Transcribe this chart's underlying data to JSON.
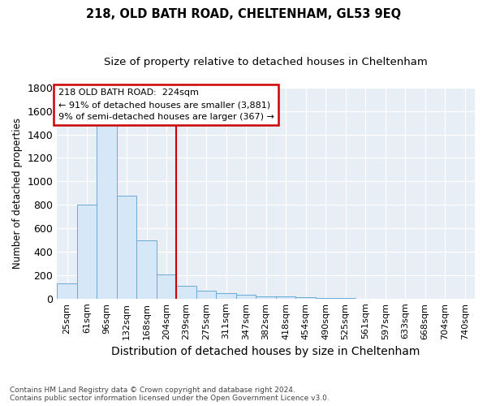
{
  "title": "218, OLD BATH ROAD, CHELTENHAM, GL53 9EQ",
  "subtitle": "Size of property relative to detached houses in Cheltenham",
  "xlabel": "Distribution of detached houses by size in Cheltenham",
  "ylabel": "Number of detached properties",
  "categories": [
    "25sqm",
    "61sqm",
    "96sqm",
    "132sqm",
    "168sqm",
    "204sqm",
    "239sqm",
    "275sqm",
    "311sqm",
    "347sqm",
    "382sqm",
    "418sqm",
    "454sqm",
    "490sqm",
    "525sqm",
    "561sqm",
    "597sqm",
    "633sqm",
    "668sqm",
    "704sqm",
    "740sqm"
  ],
  "values": [
    130,
    800,
    1480,
    880,
    500,
    205,
    110,
    65,
    45,
    35,
    20,
    20,
    10,
    5,
    3,
    2,
    2,
    1,
    1,
    0,
    0
  ],
  "bar_color": "#d6e8f7",
  "bar_edge_color": "#6aaad4",
  "vline_color": "#cc0000",
  "vline_pos": 5.5,
  "annotation_text": "218 OLD BATH ROAD:  224sqm\n← 91% of detached houses are smaller (3,881)\n9% of semi-detached houses are larger (367) →",
  "annotation_box_color": "#ffffff",
  "annotation_box_edge": "#cc0000",
  "footnote": "Contains HM Land Registry data © Crown copyright and database right 2024.\nContains public sector information licensed under the Open Government Licence v3.0.",
  "ylim": [
    0,
    1800
  ],
  "yticks": [
    0,
    200,
    400,
    600,
    800,
    1000,
    1200,
    1400,
    1600,
    1800
  ],
  "plot_background": "#e8eef5",
  "grid_color": "#ffffff",
  "title_fontsize": 10.5,
  "subtitle_fontsize": 9.5,
  "xlabel_fontsize": 10,
  "ylabel_fontsize": 8.5,
  "tick_fontsize": 8,
  "annot_fontsize": 8
}
